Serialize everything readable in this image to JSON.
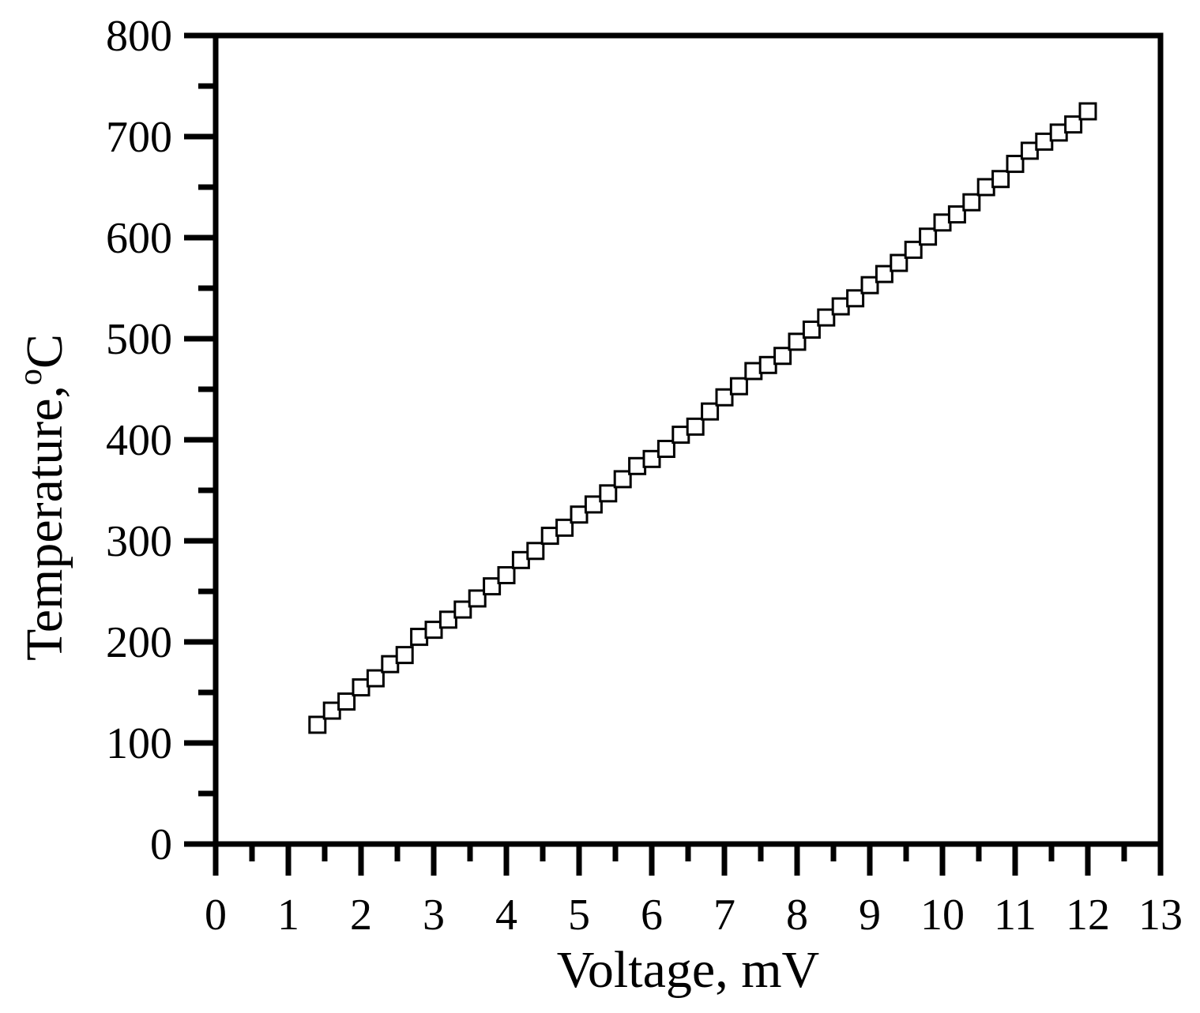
{
  "chart_data": {
    "type": "scatter",
    "title": "",
    "xlabel": "Voltage, mV",
    "ylabel": "Temperature,",
    "ylabel_unit": "C",
    "ylabel_degree": "o",
    "xlim": [
      0,
      13
    ],
    "ylim": [
      0,
      800
    ],
    "x_ticks": [
      "0",
      "1",
      "2",
      "3",
      "4",
      "5",
      "6",
      "7",
      "8",
      "9",
      "10",
      "11",
      "12",
      "13"
    ],
    "y_ticks": [
      "0",
      "100",
      "200",
      "300",
      "400",
      "500",
      "600",
      "700",
      "800"
    ],
    "grid": false,
    "legend": "none",
    "marker": "open-square",
    "colors": {
      "axis": "#000000",
      "marker_stroke": "#000000",
      "marker_fill": "#ffffff",
      "background": "#ffffff"
    },
    "series": [
      {
        "x": [
          1.4,
          1.6,
          1.8,
          2.0,
          2.2,
          2.4,
          2.6,
          2.8,
          3.0,
          3.2,
          3.4,
          3.6,
          3.8,
          4.0,
          4.2,
          4.4,
          4.6,
          4.8,
          5.0,
          5.2,
          5.4,
          5.6,
          5.8,
          6.0,
          6.2,
          6.4,
          6.6,
          6.8,
          7.0,
          7.2,
          7.4,
          7.6,
          7.8,
          8.0,
          8.2,
          8.4,
          8.6,
          8.8,
          9.0,
          9.2,
          9.4,
          9.6,
          9.8,
          10.0,
          10.2,
          10.4,
          10.6,
          10.8,
          11.0,
          11.2,
          11.4,
          11.6,
          11.8,
          12.0
        ],
        "y": [
          118,
          132,
          141,
          155,
          164,
          178,
          187,
          205,
          212,
          222,
          232,
          243,
          255,
          266,
          281,
          290,
          305,
          313,
          326,
          336,
          347,
          361,
          374,
          381,
          391,
          405,
          413,
          428,
          442,
          453,
          468,
          474,
          483,
          497,
          509,
          521,
          532,
          540,
          553,
          564,
          575,
          588,
          601,
          615,
          623,
          635,
          650,
          658,
          673,
          686,
          695,
          704,
          712,
          725
        ]
      }
    ]
  }
}
